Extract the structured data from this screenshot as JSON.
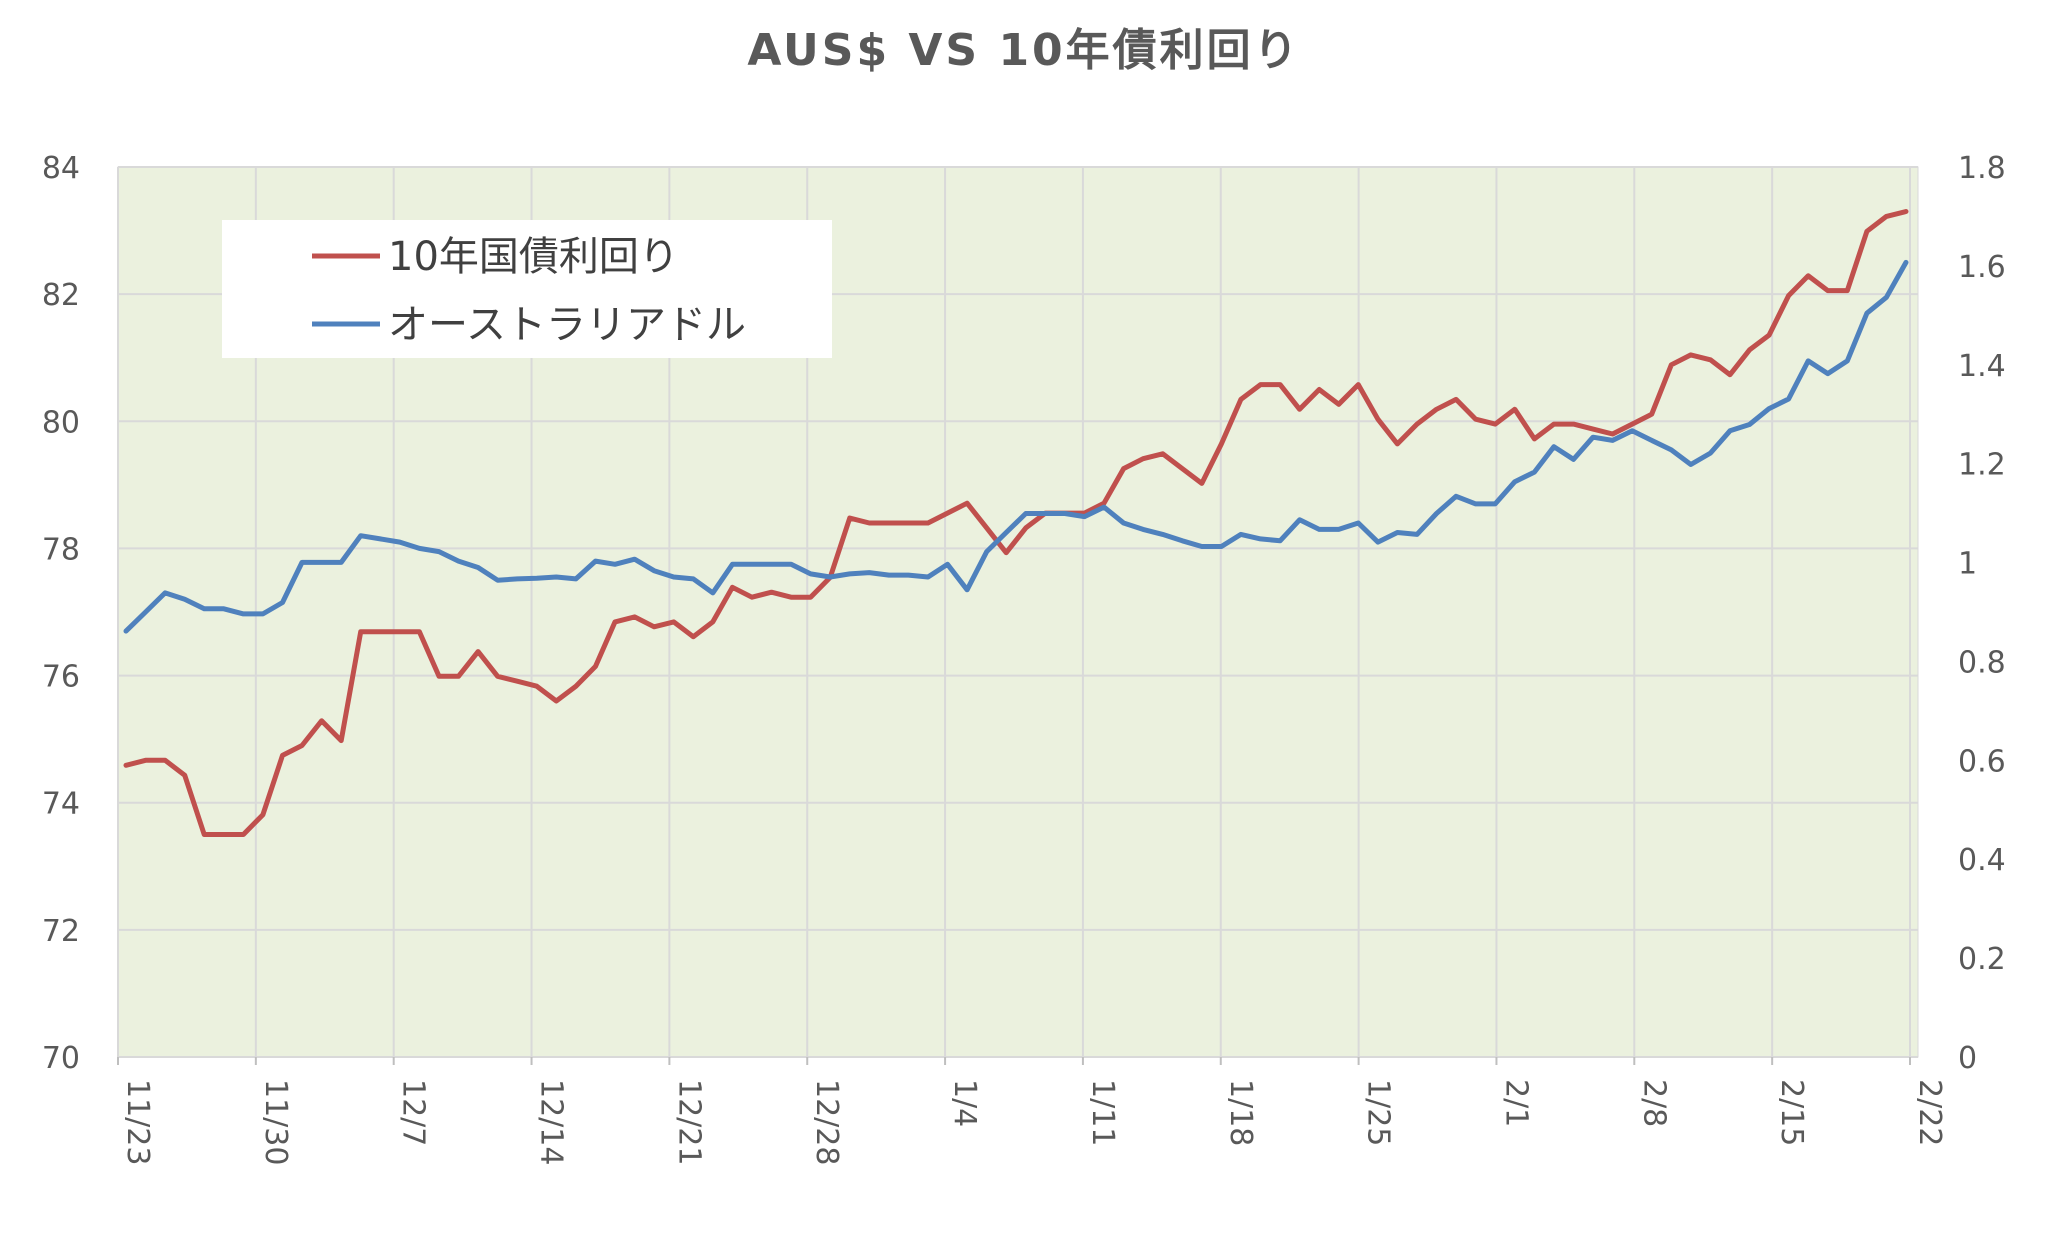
{
  "chart_data": {
    "type": "line",
    "title": "AUS$ VS 10年債利回り",
    "xlabel": "",
    "ylabel": "",
    "x_tick_labels": [
      "11/23",
      "11/30",
      "12/7",
      "12/14",
      "12/21",
      "12/28",
      "1/4",
      "1/11",
      "1/18",
      "1/25",
      "2/1",
      "2/8",
      "2/15",
      "2/22"
    ],
    "y_left": {
      "min": 70,
      "max": 84,
      "step": 2,
      "tick_labels": [
        "70",
        "72",
        "74",
        "76",
        "78",
        "80",
        "82",
        "84"
      ]
    },
    "y_right": {
      "min": 0,
      "max": 1.8,
      "step": 0.2,
      "tick_labels": [
        "0",
        "0.2",
        "0.4",
        "0.6",
        "0.8",
        "1",
        "1.2",
        "1.4",
        "1.6",
        "1.8"
      ]
    },
    "grid": true,
    "plot_background": "#ebf1de",
    "legend_position": "top-left",
    "series": [
      {
        "name": "10年国債利回り",
        "axis": "right",
        "color": "#c0504d",
        "values": [
          0.59,
          0.6,
          0.6,
          0.57,
          0.45,
          0.45,
          0.45,
          0.49,
          0.61,
          0.63,
          0.68,
          0.64,
          0.86,
          0.86,
          0.86,
          0.86,
          0.77,
          0.77,
          0.82,
          0.77,
          0.76,
          0.75,
          0.72,
          0.75,
          0.79,
          0.88,
          0.89,
          0.87,
          0.88,
          0.85,
          0.88,
          0.95,
          0.93,
          0.94,
          0.93,
          0.93,
          0.97,
          1.09,
          1.08,
          1.08,
          1.08,
          1.08,
          1.1,
          1.12,
          1.07,
          1.02,
          1.07,
          1.1,
          1.1,
          1.1,
          1.12,
          1.19,
          1.21,
          1.22,
          1.19,
          1.16,
          1.24,
          1.33,
          1.36,
          1.36,
          1.31,
          1.35,
          1.32,
          1.36,
          1.29,
          1.24,
          1.28,
          1.31,
          1.33,
          1.29,
          1.28,
          1.31,
          1.25,
          1.28,
          1.28,
          1.27,
          1.26,
          1.28,
          1.3,
          1.4,
          1.42,
          1.41,
          1.38,
          1.43,
          1.46,
          1.54,
          1.58,
          1.55,
          1.55,
          1.67,
          1.7,
          1.71
        ]
      },
      {
        "name": "オーストラリアドル",
        "axis": "left",
        "color": "#4f81bd",
        "values": [
          76.7,
          77.0,
          77.3,
          77.2,
          77.05,
          77.05,
          76.97,
          76.97,
          77.15,
          77.78,
          77.78,
          77.78,
          78.2,
          78.15,
          78.1,
          78.0,
          77.95,
          77.8,
          77.7,
          77.5,
          77.52,
          77.53,
          77.55,
          77.52,
          77.8,
          77.75,
          77.83,
          77.65,
          77.55,
          77.52,
          77.3,
          77.75,
          77.75,
          77.75,
          77.75,
          77.6,
          77.55,
          77.6,
          77.62,
          77.58,
          77.58,
          77.55,
          77.75,
          77.35,
          77.95,
          78.25,
          78.55,
          78.55,
          78.55,
          78.5,
          78.65,
          78.4,
          78.3,
          78.22,
          78.12,
          78.03,
          78.03,
          78.22,
          78.15,
          78.12,
          78.45,
          78.3,
          78.3,
          78.4,
          78.1,
          78.25,
          78.22,
          78.55,
          78.82,
          78.7,
          78.7,
          79.05,
          79.2,
          79.6,
          79.4,
          79.75,
          79.7,
          79.85,
          79.7,
          79.55,
          79.32,
          79.5,
          79.85,
          79.95,
          80.2,
          80.35,
          80.95,
          80.75,
          80.95,
          81.7,
          81.95,
          82.5
        ]
      }
    ]
  }
}
